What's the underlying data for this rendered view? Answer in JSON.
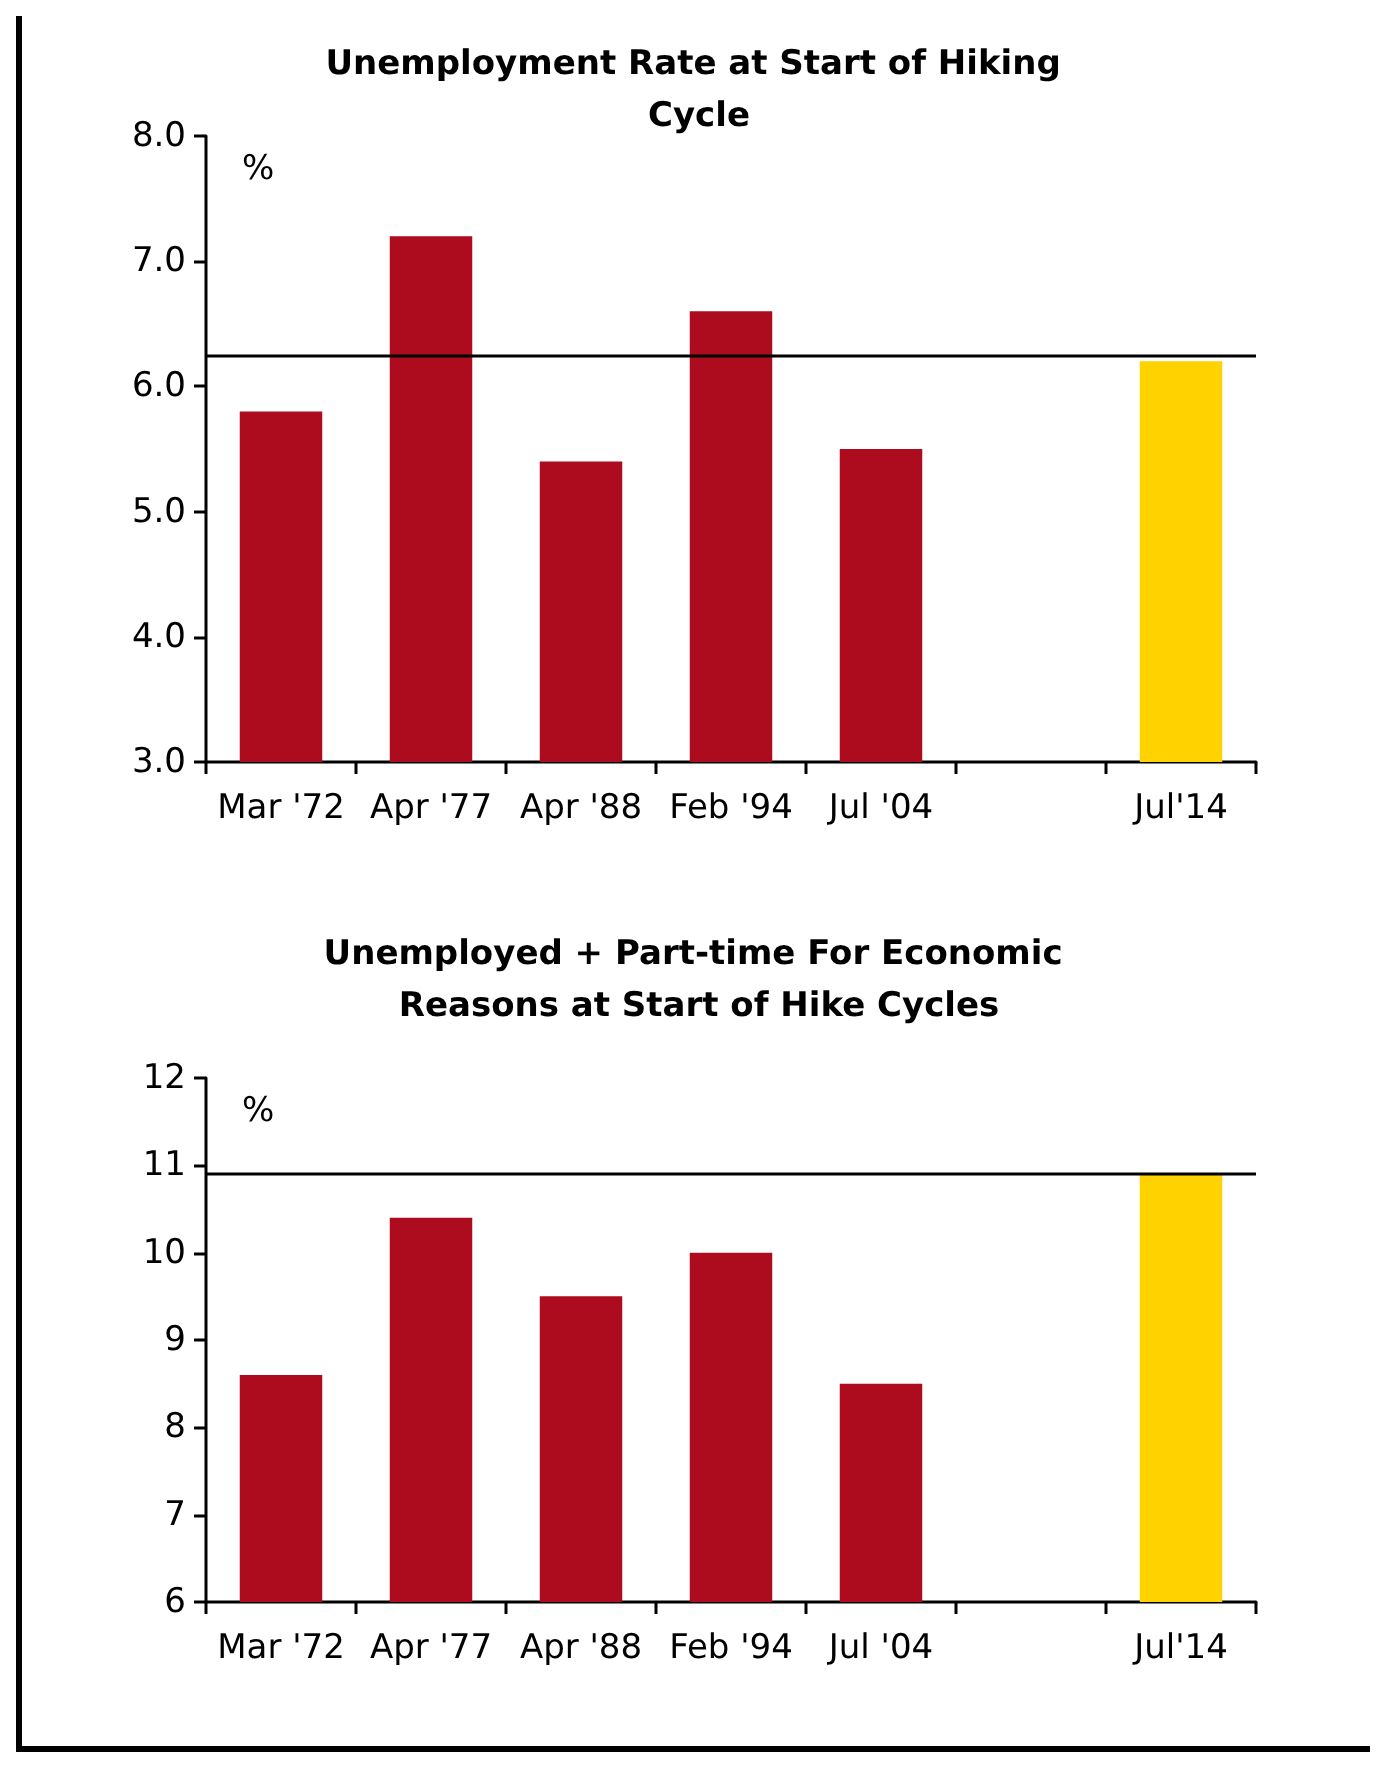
{
  "chart_data": [
    {
      "type": "bar",
      "title": "Unemployment Rate at Start of Hiking Cycle",
      "ylabel": "%",
      "categories": [
        "Mar '72",
        "Apr '77",
        "Apr '88",
        "Feb '94",
        "Jul '04",
        null,
        "Jul'14"
      ],
      "values": [
        5.8,
        7.2,
        5.4,
        6.6,
        5.5,
        null,
        6.2
      ],
      "colors": [
        "#ad0c1e",
        "#ad0c1e",
        "#ad0c1e",
        "#ad0c1e",
        "#ad0c1e",
        "#ad0c1e",
        "#ffd200"
      ],
      "ylim": [
        3,
        8
      ],
      "yticks": [
        {
          "value": 3,
          "label": "3.0"
        },
        {
          "value": 4,
          "label": "4.0"
        },
        {
          "value": 5,
          "label": "5.0"
        },
        {
          "value": 6,
          "label": "6.0"
        },
        {
          "value": 7,
          "label": "7.0"
        },
        {
          "value": 8,
          "label": "8.0"
        }
      ],
      "ref_lines": [
        {
          "axis": "y",
          "value": 6.25,
          "color": "#000000"
        }
      ],
      "grid": false
    },
    {
      "type": "bar",
      "title": "Unemployed + Part-time For Economic Reasons at Start of Hike Cycles",
      "ylabel": "%",
      "categories": [
        "Mar '72",
        "Apr '77",
        "Apr '88",
        "Feb '94",
        "Jul '04",
        null,
        "Jul'14"
      ],
      "values": [
        8.6,
        10.4,
        9.5,
        10.0,
        8.5,
        null,
        10.9
      ],
      "colors": [
        "#ad0c1e",
        "#ad0c1e",
        "#ad0c1e",
        "#ad0c1e",
        "#ad0c1e",
        "#ad0c1e",
        "#ffd200"
      ],
      "ylim": [
        6,
        12
      ],
      "yticks": [
        6,
        7,
        8,
        9,
        10,
        11,
        12
      ],
      "ref_lines": [
        {
          "axis": "y",
          "value": 10.9,
          "color": "#000000"
        }
      ],
      "grid": false
    }
  ]
}
